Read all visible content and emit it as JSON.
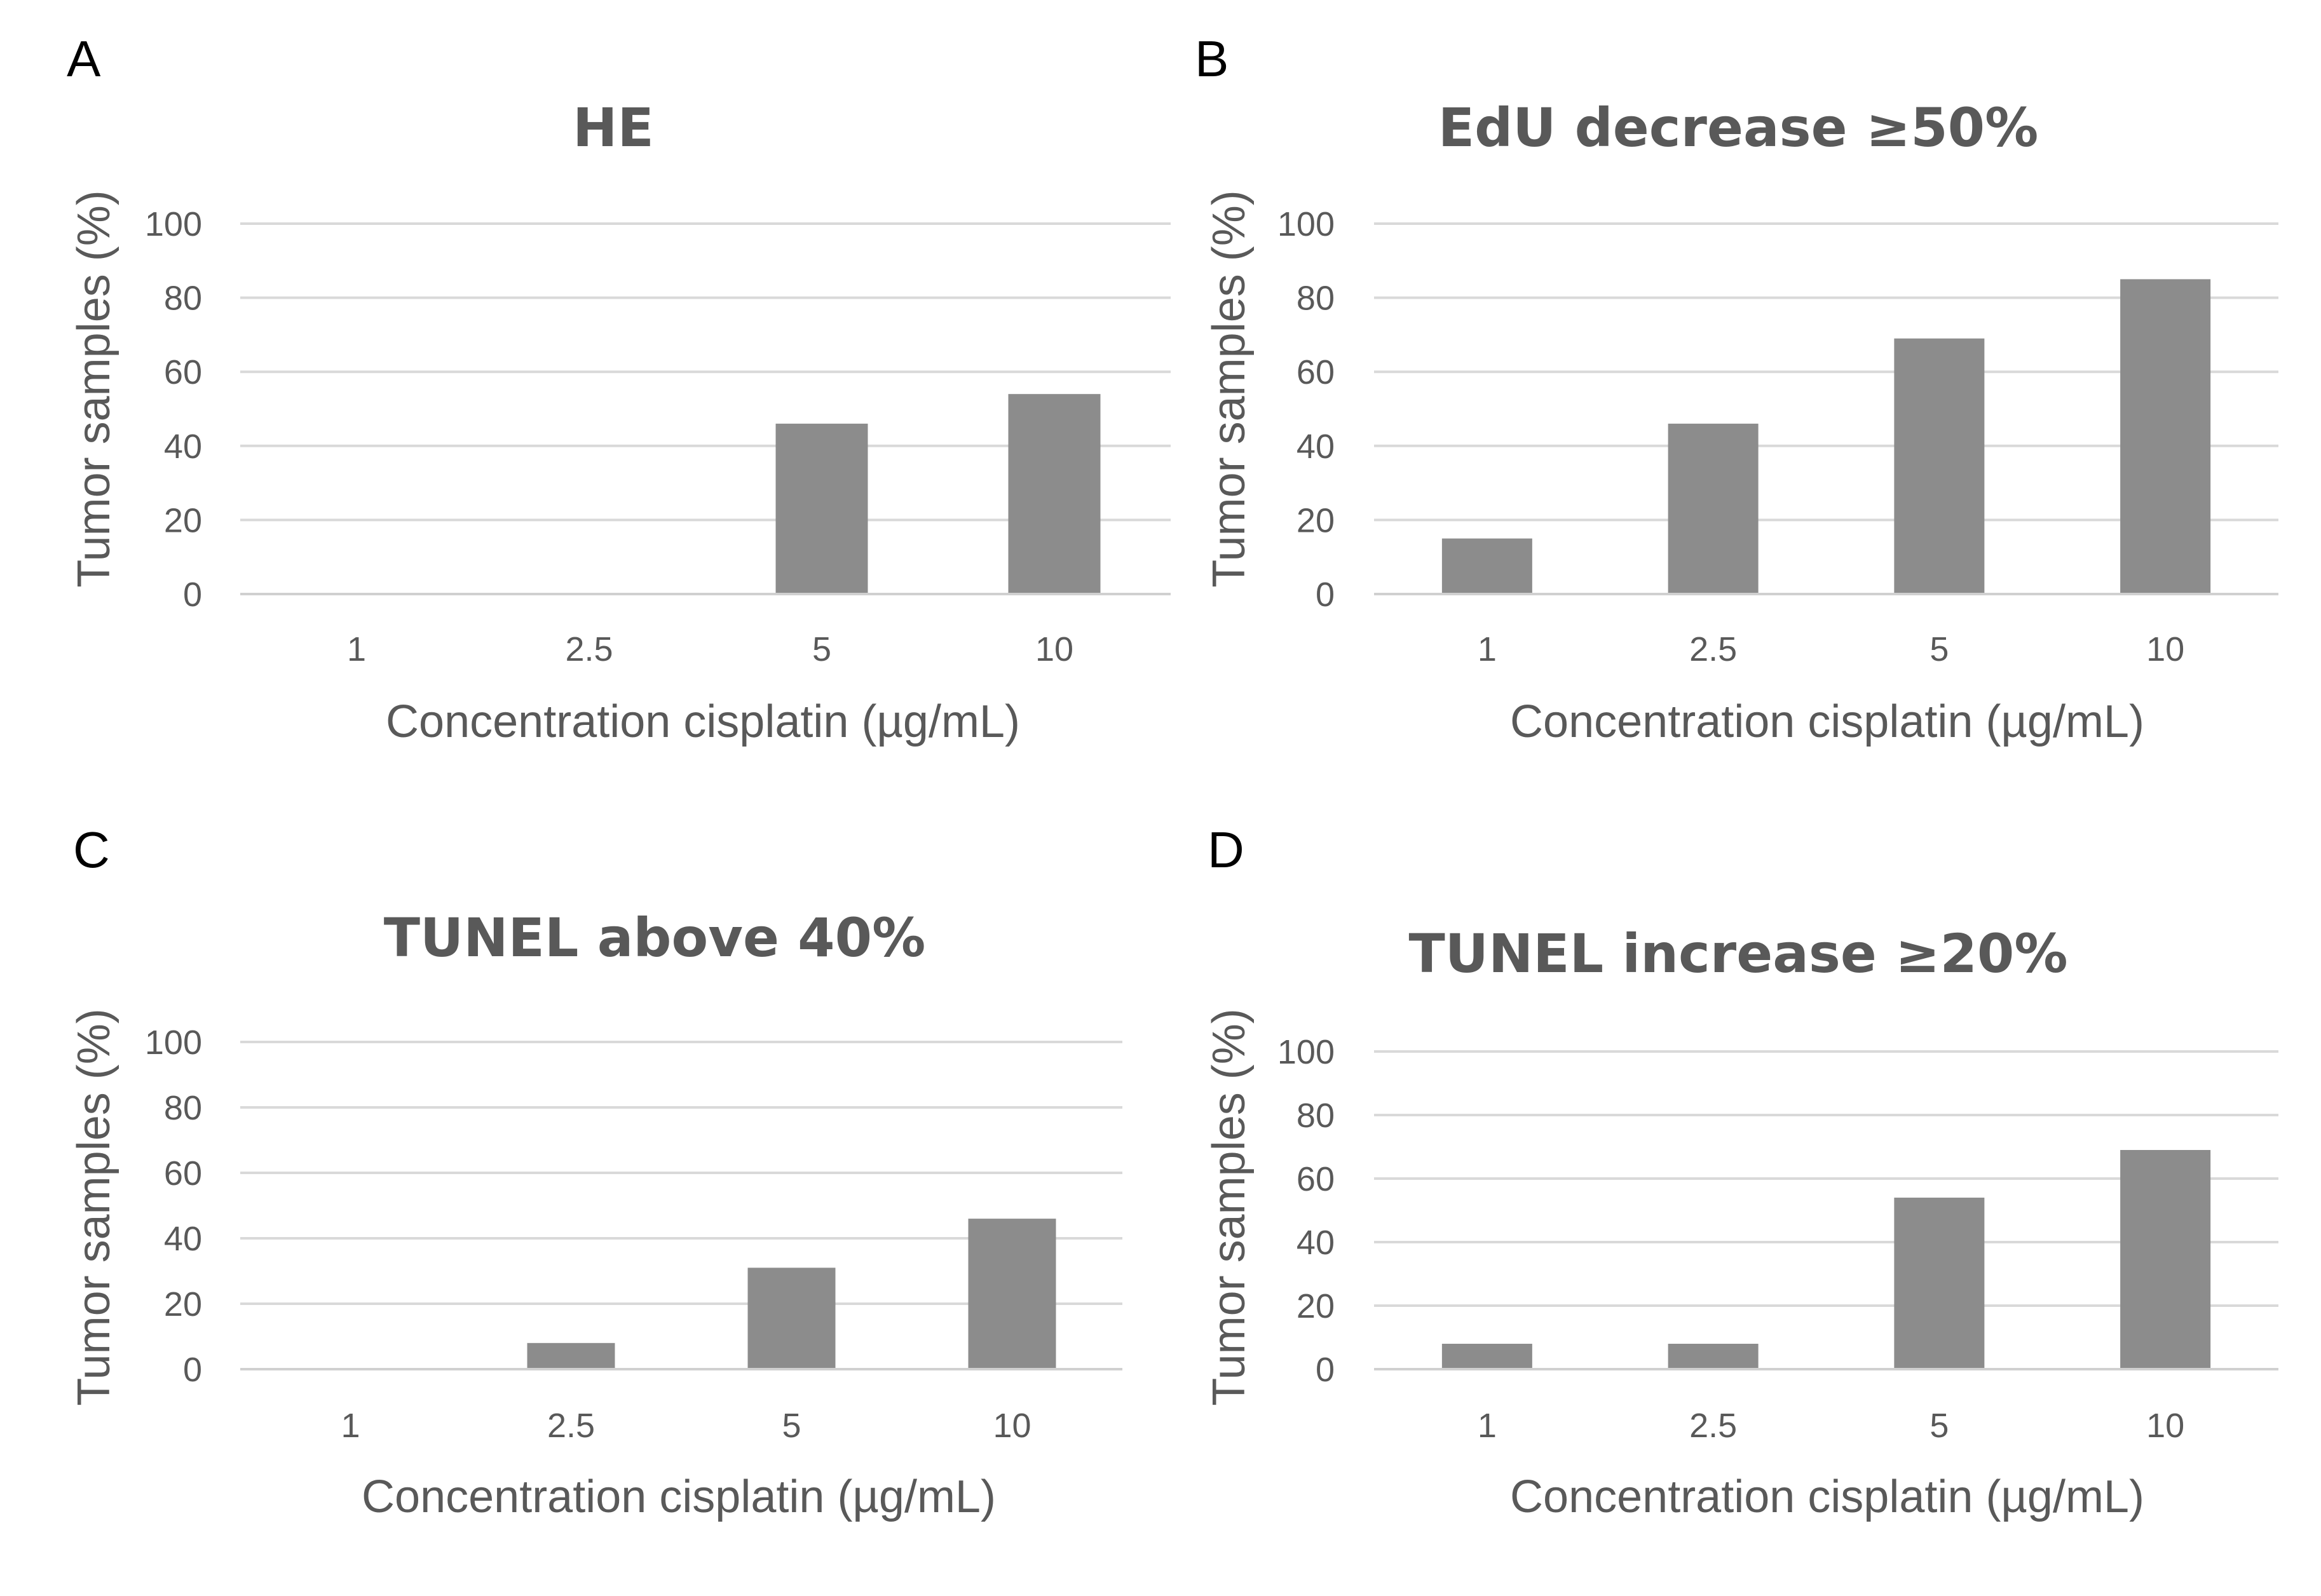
{
  "panels": [
    {
      "letter": "A"
    },
    {
      "letter": "B"
    },
    {
      "letter": "C"
    },
    {
      "letter": "D"
    }
  ],
  "chart_data": [
    {
      "type": "bar",
      "title": "HE",
      "categories": [
        "1",
        "2.5",
        "5",
        "10"
      ],
      "values": [
        0,
        0,
        46,
        54
      ],
      "xlabel": "Concentration cisplatin (µg/mL)",
      "ylabel": "Tumor samples (%)",
      "ylim": [
        0,
        100
      ],
      "yticks": [
        0,
        20,
        40,
        60,
        80,
        100
      ],
      "grid": true,
      "bar_color": "#8c8c8c"
    },
    {
      "type": "bar",
      "title": "EdU decrease ≥50%",
      "categories": [
        "1",
        "2.5",
        "5",
        "10"
      ],
      "values": [
        15,
        46,
        69,
        85
      ],
      "xlabel": "Concentration cisplatin (µg/mL)",
      "ylabel": "Tumor samples (%)",
      "ylim": [
        0,
        100
      ],
      "yticks": [
        0,
        20,
        40,
        60,
        80,
        100
      ],
      "grid": true,
      "bar_color": "#8c8c8c"
    },
    {
      "type": "bar",
      "title": "TUNEL above 40%",
      "categories": [
        "1",
        "2.5",
        "5",
        "10"
      ],
      "values": [
        0,
        8,
        31,
        46
      ],
      "xlabel": "Concentration cisplatin (µg/mL)",
      "ylabel": "Tumor samples (%)",
      "ylim": [
        0,
        100
      ],
      "yticks": [
        0,
        20,
        40,
        60,
        80,
        100
      ],
      "grid": true,
      "bar_color": "#8c8c8c"
    },
    {
      "type": "bar",
      "title": "TUNEL increase ≥20%",
      "categories": [
        "1",
        "2.5",
        "5",
        "10"
      ],
      "values": [
        8,
        8,
        54,
        69
      ],
      "xlabel": "Concentration cisplatin (µg/mL)",
      "ylabel": "Tumor samples (%)",
      "ylim": [
        0,
        100
      ],
      "yticks": [
        0,
        20,
        40,
        60,
        80,
        100
      ],
      "grid": true,
      "bar_color": "#8c8c8c"
    }
  ]
}
